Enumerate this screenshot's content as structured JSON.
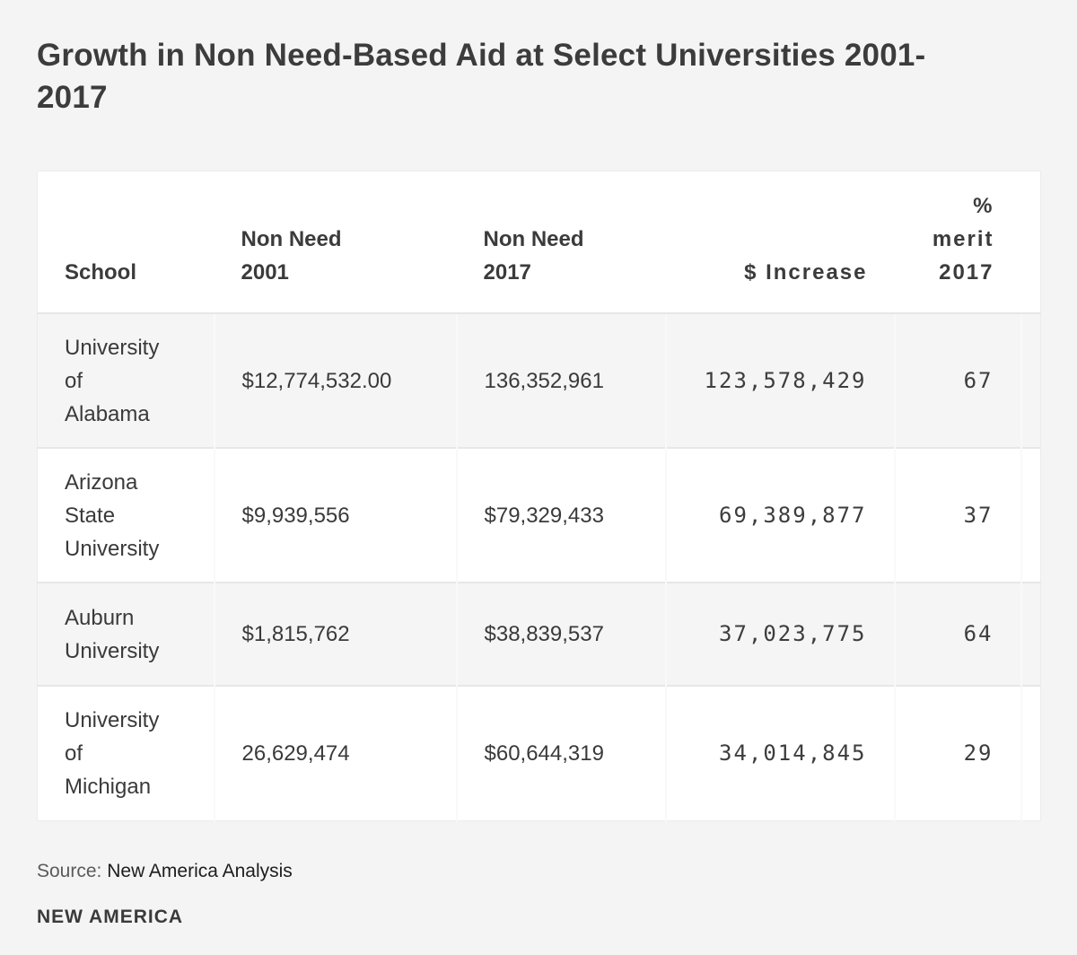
{
  "title": {
    "full": "Growth in Non Need-Based Aid at Select Universities 2001-2017",
    "lines": [
      "Growth in Non Need-Based Aid at Select Universities 2001-",
      "2017"
    ]
  },
  "chart_data": {
    "type": "table",
    "title": "Growth in Non Need-Based Aid at Select Universities 2001-2017",
    "columns": [
      "School",
      "Non Need 2001",
      "Non Need 2017",
      "$ Increase",
      "% merit 2017"
    ],
    "rows": [
      {
        "school": "University of Alabama",
        "non_need_2001": "$12,774,532.00",
        "non_need_2017": "136,352,961",
        "increase": "123,578,429",
        "pct_merit_2017": "67"
      },
      {
        "school": "Arizona State University",
        "non_need_2001": "$9,939,556",
        "non_need_2017": "$79,329,433",
        "increase": "69,389,877",
        "pct_merit_2017": "37"
      },
      {
        "school": "Auburn University",
        "non_need_2001": "$1,815,762",
        "non_need_2017": "$38,839,537",
        "increase": "37,023,775",
        "pct_merit_2017": "64"
      },
      {
        "school": "University of Michigan",
        "non_need_2001": "26,629,474",
        "non_need_2017": "$60,644,319",
        "increase": "34,014,845",
        "pct_merit_2017": "29"
      }
    ],
    "source": "New America Analysis"
  },
  "table": {
    "header": {
      "school": "School",
      "non_need_2001_lines": [
        "Non Need",
        "2001"
      ],
      "non_need_2017_lines": [
        "Non Need",
        "2017"
      ],
      "increase": "$ Increase",
      "pct_merit_lines": [
        "%",
        "merit",
        "2017"
      ]
    },
    "rows": [
      {
        "school_lines": [
          "University",
          "of",
          "Alabama"
        ]
      },
      {
        "school_lines": [
          "Arizona",
          "State",
          "University"
        ]
      },
      {
        "school_lines": [
          "Auburn",
          "University"
        ]
      },
      {
        "school_lines": [
          "University",
          "of",
          "Michigan"
        ]
      }
    ]
  },
  "footer": {
    "source_label": "Source:",
    "source_value": "New America Analysis",
    "logo": "NEW AMERICA"
  },
  "colors": {
    "page_background": "#f4f4f4",
    "row_alt_background": "#f5f5f5",
    "cell_background": "#ffffff",
    "text": "#3a3a3a",
    "row_border": "#e7e7e7"
  }
}
